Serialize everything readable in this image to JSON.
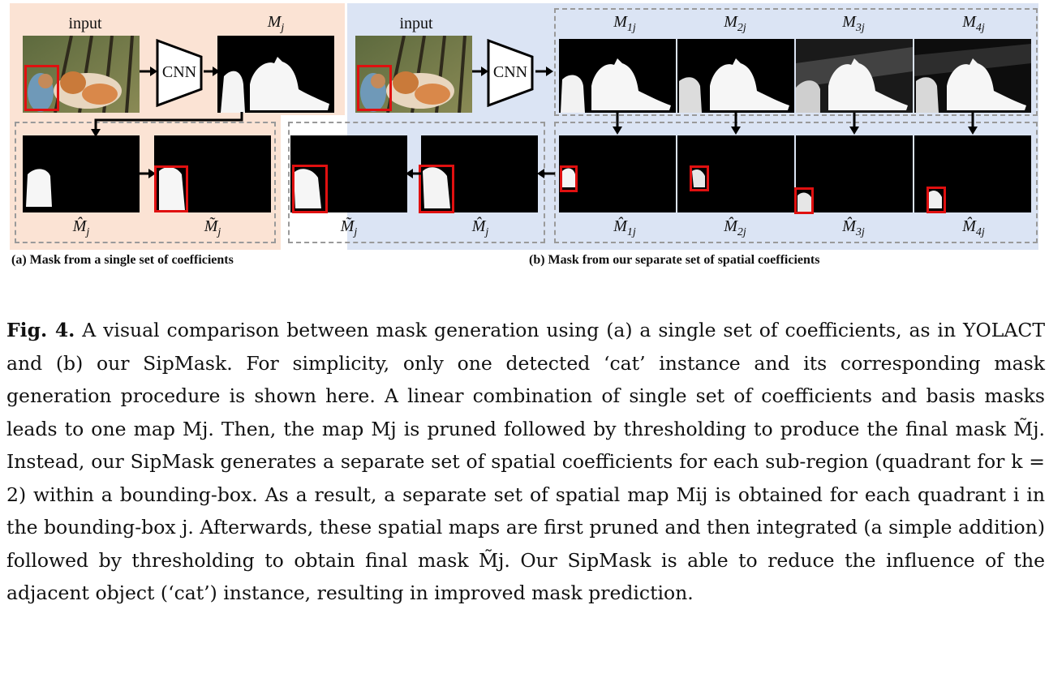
{
  "figure": {
    "panel_a": {
      "input_label": "input",
      "cnn_label": "CNN",
      "map_label": "M",
      "map_sub": "j",
      "pruned_label": "M̂",
      "pruned_sub": "j",
      "final_label": "M̃",
      "final_sub": "j",
      "caption": "(a) Mask from a single set of coefficients"
    },
    "panel_b": {
      "input_label": "input",
      "cnn_label": "CNN",
      "maps": [
        {
          "label": "M",
          "sub": "1j"
        },
        {
          "label": "M",
          "sub": "2j"
        },
        {
          "label": "M",
          "sub": "3j"
        },
        {
          "label": "M",
          "sub": "4j"
        }
      ],
      "pruned": [
        {
          "label": "M̂",
          "sub": "1j"
        },
        {
          "label": "M̂",
          "sub": "2j"
        },
        {
          "label": "M̂",
          "sub": "3j"
        },
        {
          "label": "M̂",
          "sub": "4j"
        }
      ],
      "final_label": "M̃",
      "final_sub": "j",
      "sum_label": "M̂",
      "sum_sub": "j",
      "caption": "(b) Mask from our separate set of spatial coefficients"
    },
    "colors": {
      "panel_a_bg": "#fbe3d4",
      "panel_b_bg": "#dbe4f4",
      "highlight": "#e01010"
    }
  },
  "caption": {
    "prefix": "Fig. 4.",
    "body": "A visual comparison between mask generation using (a) a single set of coefficients, as in YOLACT and (b) our SipMask. For simplicity, only one detected ‘cat’ instance and its corresponding mask generation procedure is shown here. A linear combination of single set of coefficients and basis masks leads to one map Mj. Then, the map Mj is pruned followed by thresholding to produce the final mask M̃j. Instead, our SipMask generates a separate set of spatial coefficients for each sub-region (quadrant for k = 2) within a bounding-box. As a result, a separate set of spatial map Mij is obtained for each quadrant i in the bounding-box j. Afterwards, these spatial maps are first pruned and then integrated (a simple addition) followed by thresholding to obtain final mask M̃j. Our SipMask is able to reduce the influence of the adjacent object (‘cat’) instance, resulting in improved mask prediction."
  }
}
